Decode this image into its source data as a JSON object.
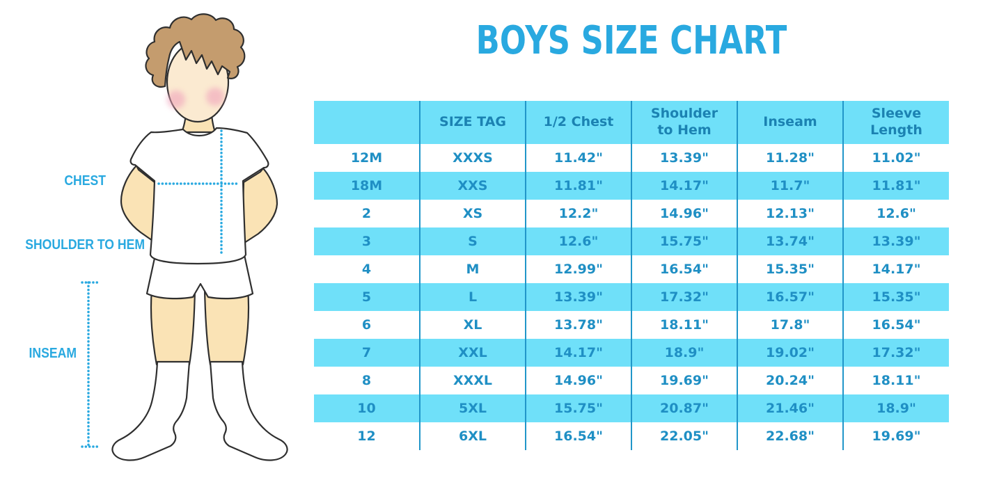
{
  "title": "BOYS SIZE CHART",
  "figure": {
    "description": "boy wearing t-shirt, shorts and knee socks with measurement guides",
    "labels": {
      "chest": "CHEST",
      "shoulder_to_hem": "SHOULDER TO HEM",
      "inseam": "INSEAM"
    }
  },
  "colors": {
    "accent_blue": "#29A9E0",
    "header_text_blue": "#1B82B2",
    "cell_text_blue": "#1F8FC4",
    "row_cyan": "#6FE0F9",
    "grid_line_blue": "#2196C9",
    "hair_brown": "#C49C6E",
    "skin": "#FAE3B5",
    "face_skin": "#FBEAD1",
    "blush_pink": "#F0A3BB",
    "outline": "#2F2F2F"
  },
  "chart_data": {
    "type": "table",
    "title": "BOYS SIZE CHART",
    "columns": [
      "",
      "SIZE TAG",
      "1/2 Chest",
      "Shoulder to Hem",
      "Inseam",
      "Sleeve Length"
    ],
    "rows": [
      [
        "12M",
        "XXXS",
        "11.42\"",
        "13.39\"",
        "11.28\"",
        "11.02\""
      ],
      [
        "18M",
        "XXS",
        "11.81\"",
        "14.17\"",
        "11.7\"",
        "11.81\""
      ],
      [
        "2",
        "XS",
        "12.2\"",
        "14.96\"",
        "12.13\"",
        "12.6\""
      ],
      [
        "3",
        "S",
        "12.6\"",
        "15.75\"",
        "13.74\"",
        "13.39\""
      ],
      [
        "4",
        "M",
        "12.99\"",
        "16.54\"",
        "15.35\"",
        "14.17\""
      ],
      [
        "5",
        "L",
        "13.39\"",
        "17.32\"",
        "16.57\"",
        "15.35\""
      ],
      [
        "6",
        "XL",
        "13.78\"",
        "18.11\"",
        "17.8\"",
        "16.54\""
      ],
      [
        "7",
        "XXL",
        "14.17\"",
        "18.9\"",
        "19.02\"",
        "17.32\""
      ],
      [
        "8",
        "XXXL",
        "14.96\"",
        "19.69\"",
        "20.24\"",
        "18.11\""
      ],
      [
        "10",
        "5XL",
        "15.75\"",
        "20.87\"",
        "21.46\"",
        "18.9\""
      ],
      [
        "12",
        "6XL",
        "16.54\"",
        "22.05\"",
        "22.68\"",
        "19.69\""
      ]
    ]
  }
}
